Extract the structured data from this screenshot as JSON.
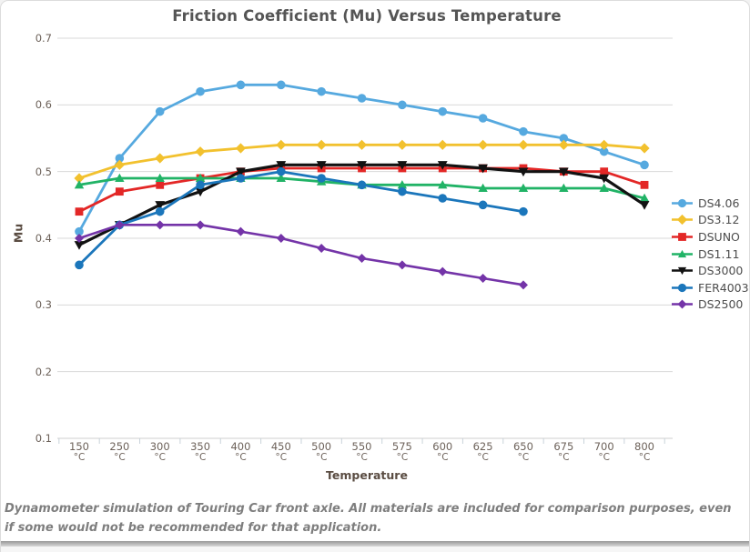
{
  "page": {
    "caption": "Dynamometer simulation of Touring Car front axle. All materials are included for comparison purposes, even if some would not be recommended for that application."
  },
  "chart_data": {
    "type": "line",
    "title": "Friction Coefficient (Mu) Versus Temperature",
    "xlabel": "Temperature",
    "ylabel": "Mu",
    "ylim": [
      0.1,
      0.7
    ],
    "y_ticks": [
      0.7,
      0.6,
      0.5,
      0.4,
      0.3,
      0.2,
      0.1
    ],
    "grid": true,
    "legend_position": "right",
    "categories": [
      "150",
      "250",
      "300",
      "350",
      "400",
      "450",
      "500",
      "550",
      "575",
      "600",
      "625",
      "650",
      "675",
      "700",
      "800"
    ],
    "category_unit": "°C",
    "colors": {
      "grid": "#d9d9d9",
      "axis": "#cfcfcf",
      "tick": "#c9d3da",
      "title": "#555555",
      "axis_title": "#5a4c42",
      "tick_label": "#6d625a"
    },
    "series": [
      {
        "name": "DS4.06",
        "color": "#56A9DF",
        "marker": "circle",
        "marker_size": 4.8,
        "line_width": 2.8,
        "values": [
          0.41,
          0.52,
          0.59,
          0.62,
          0.63,
          0.63,
          0.62,
          0.61,
          0.6,
          0.59,
          0.58,
          0.56,
          0.55,
          0.53,
          0.51
        ]
      },
      {
        "name": "DS3.12",
        "color": "#F2C12E",
        "marker": "diamond",
        "marker_size": 4.6,
        "line_width": 2.8,
        "values": [
          0.49,
          0.51,
          0.52,
          0.53,
          0.535,
          0.54,
          0.54,
          0.54,
          0.54,
          0.54,
          0.54,
          0.54,
          0.54,
          0.54,
          0.535
        ]
      },
      {
        "name": "DSUNO",
        "color": "#E32726",
        "marker": "square",
        "marker_size": 4.4,
        "line_width": 2.8,
        "values": [
          0.44,
          0.47,
          0.48,
          0.49,
          0.5,
          0.505,
          0.505,
          0.505,
          0.505,
          0.505,
          0.505,
          0.505,
          0.5,
          0.5,
          0.48
        ]
      },
      {
        "name": "DS1.11",
        "color": "#21B366",
        "marker": "triangle-up",
        "marker_size": 5.2,
        "line_width": 2.8,
        "values": [
          0.48,
          0.49,
          0.49,
          0.49,
          0.49,
          0.49,
          0.485,
          0.48,
          0.48,
          0.48,
          0.475,
          0.475,
          0.475,
          0.475,
          0.46
        ]
      },
      {
        "name": "DS3000",
        "color": "#121212",
        "marker": "triangle-down",
        "marker_size": 5.4,
        "line_width": 3.2,
        "values": [
          0.39,
          0.42,
          0.45,
          0.47,
          0.5,
          0.51,
          0.51,
          0.51,
          0.51,
          0.51,
          0.505,
          0.5,
          0.5,
          0.49,
          0.45
        ]
      },
      {
        "name": "FER4003",
        "color": "#1B76BB",
        "marker": "circle",
        "marker_size": 4.8,
        "line_width": 2.8,
        "values": [
          0.36,
          0.42,
          0.44,
          0.48,
          0.49,
          0.5,
          0.49,
          0.48,
          0.47,
          0.46,
          0.45,
          0.44,
          null,
          null,
          null
        ]
      },
      {
        "name": "DS2500",
        "color": "#7434A8",
        "marker": "diamond",
        "marker_size": 4.0,
        "line_width": 2.6,
        "values": [
          0.4,
          0.42,
          0.42,
          0.42,
          0.41,
          0.4,
          0.385,
          0.37,
          0.36,
          0.35,
          0.34,
          0.33,
          null,
          null,
          null
        ]
      }
    ]
  }
}
